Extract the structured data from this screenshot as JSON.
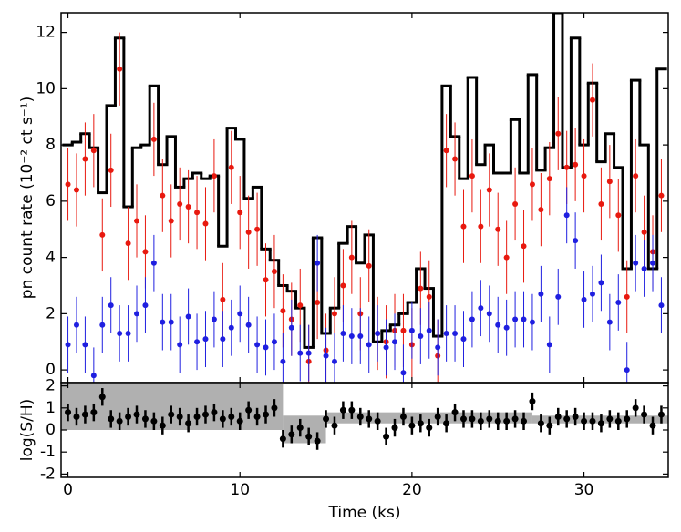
{
  "chart_data": [
    {
      "type": "step_errorbar",
      "ylabel": "pn count rate (10⁻² ct s⁻¹)",
      "xlim": [
        -0.4,
        34.9
      ],
      "ylim": [
        -0.45,
        12.7
      ],
      "xticks": [
        0,
        10,
        20,
        30
      ],
      "yticks": [
        0,
        2,
        4,
        6,
        8,
        10,
        12
      ],
      "show_xtick_labels": false,
      "x": [
        0,
        0.5,
        1,
        1.5,
        2,
        2.5,
        3,
        3.5,
        4,
        4.5,
        5,
        5.5,
        6,
        6.5,
        7,
        7.5,
        8,
        8.5,
        9,
        9.5,
        10,
        10.5,
        11,
        11.5,
        12,
        12.5,
        13,
        13.5,
        14,
        14.5,
        15,
        15.5,
        16,
        16.5,
        17,
        17.5,
        18,
        18.5,
        19,
        19.5,
        20,
        20.5,
        21,
        21.5,
        22,
        22.5,
        23,
        23.5,
        24,
        24.5,
        25,
        25.5,
        26,
        26.5,
        27,
        27.5,
        28,
        28.5,
        29,
        29.5,
        30,
        30.5,
        31,
        31.5,
        32,
        32.5,
        33,
        33.5,
        34,
        34.5
      ],
      "series": [
        {
          "style": "step",
          "color": "#000000",
          "values": [
            8.0,
            8.1,
            8.4,
            7.9,
            6.3,
            9.4,
            11.8,
            5.8,
            7.9,
            8.0,
            10.1,
            7.3,
            8.3,
            6.5,
            6.8,
            7.0,
            6.8,
            6.9,
            4.4,
            8.6,
            8.2,
            6.1,
            6.5,
            4.3,
            3.9,
            3.0,
            2.8,
            2.2,
            0.8,
            4.7,
            1.3,
            2.2,
            4.5,
            5.1,
            3.8,
            4.8,
            1.0,
            1.4,
            1.6,
            2.0,
            2.4,
            3.6,
            2.9,
            1.2,
            10.1,
            8.3,
            6.8,
            10.4,
            7.3,
            8.0,
            7.0,
            7.0,
            8.9,
            7.0,
            10.5,
            7.1,
            7.9,
            12.7,
            7.2,
            11.8,
            8.0,
            10.2,
            7.4,
            8.4,
            7.2,
            3.6,
            10.3,
            8.0,
            3.6,
            10.7
          ]
        },
        {
          "style": "errorbar",
          "color": "#e8190f",
          "error": 1.3,
          "values": [
            6.6,
            6.4,
            7.5,
            7.8,
            4.8,
            7.1,
            10.7,
            4.5,
            5.3,
            4.2,
            8.2,
            6.2,
            5.3,
            5.9,
            5.8,
            5.6,
            5.2,
            6.9,
            2.5,
            7.2,
            5.6,
            4.9,
            5.0,
            3.2,
            3.5,
            2.1,
            1.8,
            2.3,
            0.3,
            2.4,
            0.7,
            2.0,
            3.0,
            4.0,
            2.0,
            3.7,
            1.3,
            1.0,
            1.4,
            1.4,
            0.9,
            2.9,
            2.6,
            0.5,
            7.8,
            7.5,
            5.1,
            6.9,
            5.1,
            6.4,
            5.0,
            4.0,
            5.9,
            4.4,
            6.6,
            5.7,
            6.8,
            8.4,
            7.2,
            7.3,
            6.9,
            9.6,
            5.9,
            6.7,
            5.5,
            2.6,
            6.9,
            4.9,
            4.2,
            6.2
          ]
        },
        {
          "style": "errorbar",
          "color": "#1f1fe0",
          "error": 1.0,
          "values": [
            0.9,
            1.6,
            0.9,
            -0.2,
            1.6,
            2.3,
            1.3,
            1.3,
            2.0,
            2.3,
            3.8,
            1.7,
            1.7,
            0.9,
            1.9,
            1.0,
            1.1,
            1.8,
            1.1,
            1.5,
            2.0,
            1.6,
            0.9,
            0.8,
            1.0,
            0.3,
            1.5,
            0.6,
            0.6,
            3.8,
            0.5,
            0.3,
            1.3,
            1.2,
            1.2,
            0.9,
            1.3,
            0.8,
            1.0,
            -0.1,
            1.4,
            1.2,
            1.4,
            0.8,
            1.3,
            1.3,
            1.1,
            1.8,
            2.2,
            2.0,
            1.6,
            1.5,
            1.8,
            1.8,
            1.7,
            2.7,
            0.9,
            2.6,
            5.5,
            4.6,
            2.5,
            2.7,
            3.1,
            1.7,
            2.4,
            0.0,
            3.8,
            3.6,
            3.8,
            2.3
          ]
        }
      ]
    },
    {
      "type": "blocks_errorbar",
      "xlabel": "Time (ks)",
      "ylabel": "log(S/H)",
      "xlim": [
        -0.4,
        34.9
      ],
      "ylim": [
        -2.15,
        2.15
      ],
      "xticks": [
        0,
        10,
        20,
        30
      ],
      "yticks": [
        -2,
        -1,
        0,
        1,
        2
      ],
      "show_xtick_labels": true,
      "x": [
        0,
        0.5,
        1,
        1.5,
        2,
        2.5,
        3,
        3.5,
        4,
        4.5,
        5,
        5.5,
        6,
        6.5,
        7,
        7.5,
        8,
        8.5,
        9,
        9.5,
        10,
        10.5,
        11,
        11.5,
        12,
        12.5,
        13,
        13.5,
        14,
        14.5,
        15,
        15.5,
        16,
        16.5,
        17,
        17.5,
        18,
        18.5,
        19,
        19.5,
        20,
        20.5,
        21,
        21.5,
        22,
        22.5,
        23,
        23.5,
        24,
        24.5,
        25,
        25.5,
        26,
        26.5,
        27,
        27.5,
        28,
        28.5,
        29,
        29.5,
        30,
        30.5,
        31,
        31.5,
        32,
        32.5,
        33,
        33.5,
        34,
        34.5
      ],
      "color": "#000000",
      "error": 0.4,
      "values": [
        0.8,
        0.6,
        0.7,
        0.8,
        1.5,
        0.5,
        0.4,
        0.6,
        0.7,
        0.5,
        0.4,
        0.2,
        0.7,
        0.6,
        0.3,
        0.6,
        0.7,
        0.8,
        0.5,
        0.6,
        0.4,
        0.9,
        0.6,
        0.7,
        1.0,
        -0.4,
        -0.2,
        0.1,
        -0.3,
        -0.5,
        0.5,
        0.2,
        0.9,
        0.9,
        0.6,
        0.5,
        0.4,
        -0.3,
        0.1,
        0.6,
        0.2,
        0.3,
        0.1,
        0.6,
        0.3,
        0.8,
        0.5,
        0.5,
        0.4,
        0.5,
        0.4,
        0.4,
        0.5,
        0.4,
        1.3,
        0.3,
        0.2,
        0.6,
        0.5,
        0.6,
        0.4,
        0.4,
        0.3,
        0.5,
        0.4,
        0.5,
        1.0,
        0.7,
        0.2,
        0.7
      ],
      "blocks": {
        "color": "#b0b0b0",
        "edges": [
          -0.4,
          12.5,
          15,
          27,
          34.9
        ],
        "lower": [
          0,
          -0.6,
          0.3,
          0.3
        ],
        "upper": [
          2.2,
          0.65,
          0.8,
          0.65
        ]
      }
    }
  ]
}
